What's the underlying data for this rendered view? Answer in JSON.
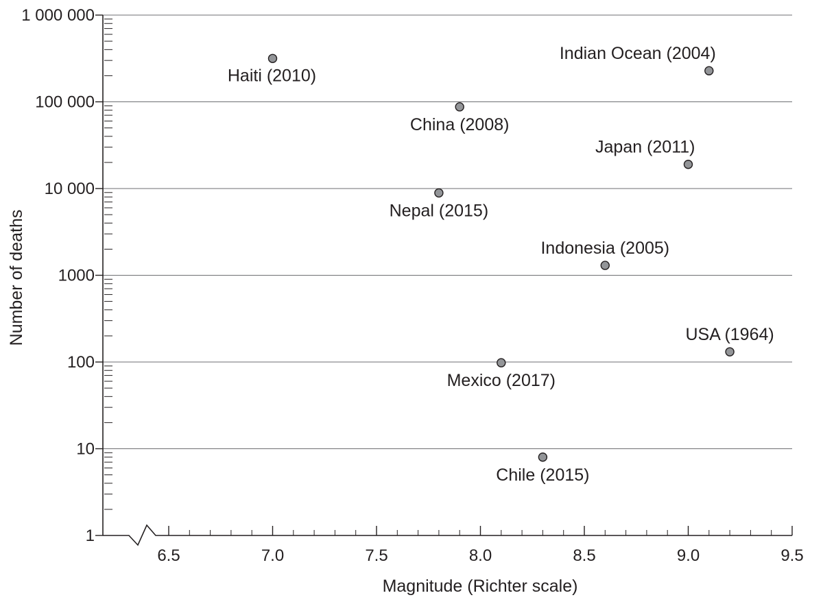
{
  "chart_data": {
    "type": "scatter",
    "xlabel": "Magnitude (Richter scale)",
    "ylabel": "Number of deaths",
    "x_scale": "linear",
    "y_scale": "log",
    "xlim": [
      6.3,
      9.5
    ],
    "ylim": [
      1,
      1000000
    ],
    "x_ticks": [
      6.5,
      7.0,
      7.5,
      8.0,
      8.5,
      9.0,
      9.5
    ],
    "x_tick_labels": [
      "6.5",
      "7.0",
      "7.5",
      "8.0",
      "8.5",
      "9.0",
      "9.5"
    ],
    "y_ticks": [
      1,
      10,
      100,
      1000,
      10000,
      100000,
      1000000
    ],
    "y_tick_labels": [
      "1",
      "10",
      "100",
      "1000",
      "10 000",
      "100 000",
      "1 000 000"
    ],
    "x_axis_break": true,
    "grid": "horizontal",
    "points": [
      {
        "label": "Haiti (2010)",
        "x": 7.0,
        "y": 316000,
        "label_pos": "below-left"
      },
      {
        "label": "Indian Ocean (2004)",
        "x": 9.1,
        "y": 228000,
        "label_pos": "above-left"
      },
      {
        "label": "China (2008)",
        "x": 7.9,
        "y": 87500,
        "label_pos": "below"
      },
      {
        "label": "Japan (2011)",
        "x": 9.0,
        "y": 19000,
        "label_pos": "above-left"
      },
      {
        "label": "Nepal (2015)",
        "x": 7.8,
        "y": 8900,
        "label_pos": "below"
      },
      {
        "label": "Indonesia (2005)",
        "x": 8.6,
        "y": 1300,
        "label_pos": "above"
      },
      {
        "label": "USA (1964)",
        "x": 9.2,
        "y": 131,
        "label_pos": "above"
      },
      {
        "label": "Mexico (2017)",
        "x": 8.1,
        "y": 98,
        "label_pos": "below"
      },
      {
        "label": "Chile (2015)",
        "x": 8.3,
        "y": 8,
        "label_pos": "below"
      }
    ]
  }
}
